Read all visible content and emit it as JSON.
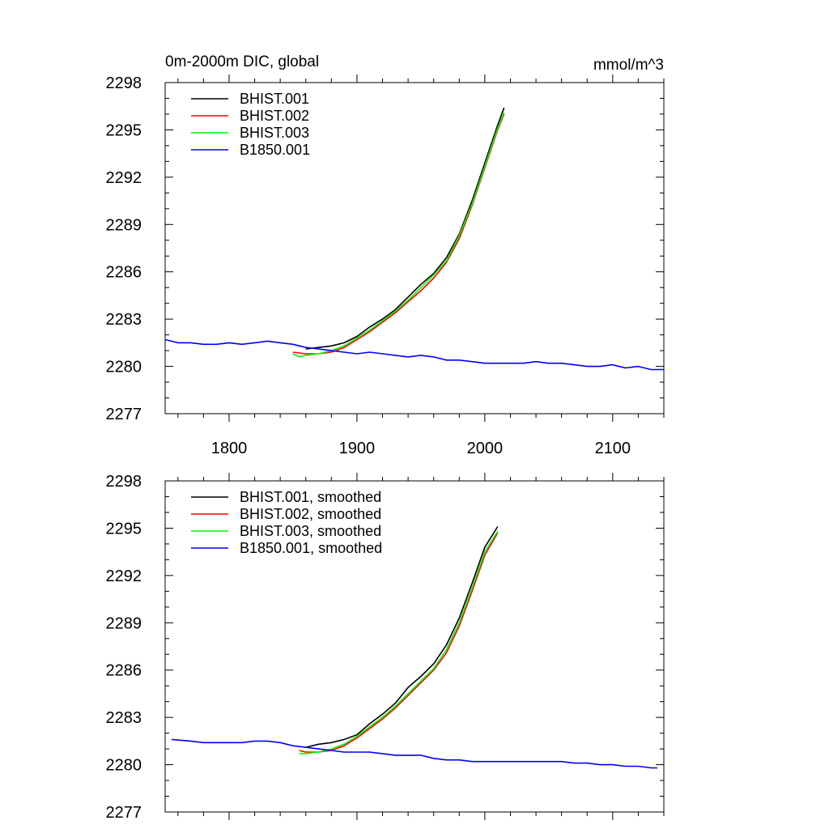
{
  "title_left": "0m-2000m DIC, global",
  "title_right": "mmol/m^3",
  "chart_data": [
    {
      "type": "line",
      "panel": "raw",
      "xlim": [
        1750,
        2140
      ],
      "ylim": [
        2277,
        2298
      ],
      "x_ticks": [
        1800,
        1900,
        2000,
        2100
      ],
      "x_tick_labels": [
        "1800",
        "1900",
        "2000",
        "2100"
      ],
      "y_ticks": [
        2277,
        2280,
        2283,
        2286,
        2289,
        2292,
        2295,
        2298
      ],
      "y_tick_labels": [
        "2277",
        "2280",
        "2283",
        "2286",
        "2289",
        "2292",
        "2295",
        "2298"
      ],
      "legend": "top-left",
      "series": [
        {
          "name": "BHIST.001",
          "color": "#000000",
          "x": [
            1860,
            1870,
            1880,
            1890,
            1900,
            1910,
            1920,
            1930,
            1940,
            1950,
            1960,
            1970,
            1980,
            1990,
            2000,
            2010,
            2015
          ],
          "y": [
            2281.1,
            2281.2,
            2281.3,
            2281.5,
            2281.9,
            2282.5,
            2283.0,
            2283.6,
            2284.4,
            2285.2,
            2285.9,
            2286.9,
            2288.4,
            2290.5,
            2292.9,
            2295.3,
            2296.4
          ]
        },
        {
          "name": "BHIST.002",
          "color": "#ff0000",
          "x": [
            1850,
            1860,
            1870,
            1880,
            1890,
            1900,
            1910,
            1920,
            1930,
            1940,
            1950,
            1960,
            1970,
            1980,
            1990,
            2000,
            2010,
            2015
          ],
          "y": [
            2280.9,
            2280.8,
            2280.8,
            2280.9,
            2281.2,
            2281.7,
            2282.2,
            2282.8,
            2283.4,
            2284.1,
            2284.8,
            2285.6,
            2286.6,
            2288.1,
            2290.2,
            2292.6,
            2295.0,
            2296.0
          ]
        },
        {
          "name": "BHIST.003",
          "color": "#00ff00",
          "x": [
            1850,
            1855,
            1860,
            1870,
            1880,
            1890,
            1900,
            1910,
            1920,
            1930,
            1940,
            1950,
            1960,
            1970,
            1980,
            1990,
            2000,
            2010,
            2015
          ],
          "y": [
            2280.8,
            2280.6,
            2280.7,
            2280.8,
            2281.0,
            2281.3,
            2281.8,
            2282.3,
            2282.9,
            2283.5,
            2284.2,
            2285.0,
            2285.8,
            2286.7,
            2288.3,
            2290.3,
            2292.7,
            2295.1,
            2296.1
          ]
        },
        {
          "name": "B1850.001",
          "color": "#0000ff",
          "x": [
            1750,
            1760,
            1770,
            1780,
            1790,
            1800,
            1810,
            1820,
            1830,
            1840,
            1850,
            1860,
            1870,
            1880,
            1890,
            1900,
            1910,
            1920,
            1930,
            1940,
            1950,
            1960,
            1970,
            1980,
            1990,
            2000,
            2010,
            2020,
            2030,
            2040,
            2050,
            2060,
            2070,
            2080,
            2090,
            2100,
            2110,
            2120,
            2130,
            2140
          ],
          "y": [
            2281.7,
            2281.5,
            2281.5,
            2281.4,
            2281.4,
            2281.5,
            2281.4,
            2281.5,
            2281.6,
            2281.5,
            2281.4,
            2281.2,
            2281.1,
            2281.0,
            2280.9,
            2280.8,
            2280.9,
            2280.8,
            2280.7,
            2280.6,
            2280.7,
            2280.6,
            2280.4,
            2280.4,
            2280.3,
            2280.2,
            2280.2,
            2280.2,
            2280.2,
            2280.3,
            2280.2,
            2280.2,
            2280.1,
            2280.0,
            2280.0,
            2280.1,
            2279.9,
            2280.0,
            2279.8,
            2279.8
          ]
        }
      ]
    },
    {
      "type": "line",
      "panel": "smoothed",
      "xlim": [
        1750,
        2140
      ],
      "ylim": [
        2277,
        2298
      ],
      "x_ticks": [
        1800,
        1900,
        2000,
        2100
      ],
      "y_ticks": [
        2277,
        2280,
        2283,
        2286,
        2289,
        2292,
        2295,
        2298
      ],
      "y_tick_labels": [
        "2277",
        "2280",
        "2283",
        "2286",
        "2289",
        "2292",
        "2295",
        "2298"
      ],
      "legend": "top-left",
      "series": [
        {
          "name": "BHIST.001, smoothed",
          "color": "#000000",
          "x": [
            1860,
            1870,
            1880,
            1890,
            1900,
            1910,
            1920,
            1930,
            1940,
            1950,
            1960,
            1970,
            1980,
            1990,
            2000,
            2010
          ],
          "y": [
            2281.1,
            2281.3,
            2281.4,
            2281.6,
            2281.9,
            2282.6,
            2283.2,
            2283.9,
            2284.9,
            2285.6,
            2286.4,
            2287.6,
            2289.3,
            2291.5,
            2293.8,
            2295.1
          ]
        },
        {
          "name": "BHIST.002, smoothed",
          "color": "#ff0000",
          "x": [
            1855,
            1860,
            1870,
            1880,
            1890,
            1900,
            1910,
            1920,
            1930,
            1940,
            1950,
            1960,
            1970,
            1980,
            1990,
            2000,
            2010
          ],
          "y": [
            2280.9,
            2280.8,
            2280.8,
            2280.9,
            2281.2,
            2281.7,
            2282.3,
            2282.9,
            2283.6,
            2284.4,
            2285.2,
            2286.0,
            2287.1,
            2288.8,
            2291.0,
            2293.3,
            2294.7
          ]
        },
        {
          "name": "BHIST.003, smoothed",
          "color": "#00ff00",
          "x": [
            1855,
            1860,
            1870,
            1880,
            1890,
            1900,
            1910,
            1920,
            1930,
            1940,
            1950,
            1960,
            1970,
            1980,
            1990,
            2000,
            2010
          ],
          "y": [
            2280.7,
            2280.7,
            2280.8,
            2281.0,
            2281.3,
            2281.8,
            2282.4,
            2283.0,
            2283.7,
            2284.5,
            2285.3,
            2286.1,
            2287.3,
            2289.0,
            2291.2,
            2293.5,
            2294.8
          ]
        },
        {
          "name": "B1850.001, smoothed",
          "color": "#0000ff",
          "x": [
            1755,
            1770,
            1780,
            1790,
            1800,
            1810,
            1820,
            1830,
            1840,
            1850,
            1860,
            1870,
            1880,
            1890,
            1900,
            1910,
            1920,
            1930,
            1940,
            1950,
            1960,
            1970,
            1980,
            1990,
            2000,
            2010,
            2020,
            2030,
            2040,
            2050,
            2060,
            2070,
            2080,
            2090,
            2100,
            2110,
            2120,
            2130,
            2135
          ],
          "y": [
            2281.6,
            2281.5,
            2281.4,
            2281.4,
            2281.4,
            2281.4,
            2281.5,
            2281.5,
            2281.4,
            2281.2,
            2281.1,
            2281.0,
            2280.9,
            2280.8,
            2280.8,
            2280.8,
            2280.7,
            2280.6,
            2280.6,
            2280.6,
            2280.4,
            2280.3,
            2280.3,
            2280.2,
            2280.2,
            2280.2,
            2280.2,
            2280.2,
            2280.2,
            2280.2,
            2280.2,
            2280.1,
            2280.1,
            2280.0,
            2280.0,
            2279.9,
            2279.9,
            2279.8,
            2279.8
          ]
        }
      ]
    }
  ]
}
